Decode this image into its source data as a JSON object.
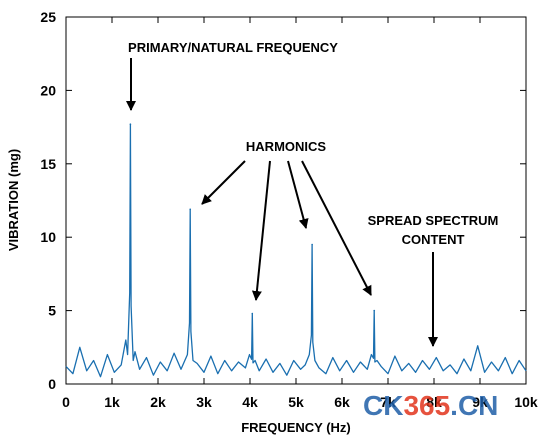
{
  "chart_data": {
    "type": "line",
    "xlabel": "FREQUENCY (Hz)",
    "ylabel": "VIBRATION (mg)",
    "xlim": [
      0,
      10000
    ],
    "ylim": [
      0,
      25
    ],
    "x_ticks": [
      0,
      1000,
      2000,
      3000,
      4000,
      5000,
      6000,
      7000,
      8000,
      9000,
      10000
    ],
    "x_tick_labels": [
      "0",
      "1k",
      "2k",
      "3k",
      "4k",
      "5k",
      "6k",
      "7k",
      "8k",
      "9k",
      "10k"
    ],
    "y_ticks": [
      0,
      5,
      10,
      15,
      20,
      25
    ],
    "y_tick_labels": [
      "0",
      "5",
      "10",
      "15",
      "20",
      "25"
    ],
    "grid": false,
    "color": "#1a6fb0",
    "peaks": [
      {
        "x": 1400,
        "y": 17.7
      },
      {
        "x": 2700,
        "y": 11.9
      },
      {
        "x": 4050,
        "y": 4.8
      },
      {
        "x": 5350,
        "y": 9.5
      },
      {
        "x": 6700,
        "y": 5.0
      }
    ],
    "noise_floor": [
      [
        0,
        1.2
      ],
      [
        150,
        0.7
      ],
      [
        300,
        2.5
      ],
      [
        450,
        0.9
      ],
      [
        600,
        1.6
      ],
      [
        750,
        0.5
      ],
      [
        900,
        2.0
      ],
      [
        1050,
        0.8
      ],
      [
        1200,
        1.3
      ],
      [
        1300,
        3.0
      ],
      [
        1500,
        2.2
      ],
      [
        1600,
        1.0
      ],
      [
        1750,
        1.8
      ],
      [
        1900,
        0.6
      ],
      [
        2050,
        1.5
      ],
      [
        2200,
        0.9
      ],
      [
        2350,
        2.1
      ],
      [
        2500,
        1.0
      ],
      [
        2850,
        1.4
      ],
      [
        3000,
        0.8
      ],
      [
        3150,
        1.9
      ],
      [
        3300,
        0.7
      ],
      [
        3450,
        1.6
      ],
      [
        3600,
        0.9
      ],
      [
        3750,
        1.5
      ],
      [
        3900,
        1.1
      ],
      [
        4200,
        0.9
      ],
      [
        4350,
        1.7
      ],
      [
        4500,
        0.8
      ],
      [
        4650,
        1.4
      ],
      [
        4800,
        0.6
      ],
      [
        4950,
        1.6
      ],
      [
        5100,
        1.0
      ],
      [
        5200,
        1.3
      ],
      [
        5500,
        1.1
      ],
      [
        5650,
        0.7
      ],
      [
        5800,
        1.8
      ],
      [
        5950,
        0.9
      ],
      [
        6100,
        1.6
      ],
      [
        6250,
        0.8
      ],
      [
        6400,
        1.5
      ],
      [
        6550,
        1.0
      ],
      [
        6850,
        1.2
      ],
      [
        7000,
        0.7
      ],
      [
        7150,
        1.9
      ],
      [
        7300,
        0.9
      ],
      [
        7450,
        1.4
      ],
      [
        7600,
        0.8
      ],
      [
        7750,
        1.6
      ],
      [
        7900,
        1.0
      ],
      [
        8050,
        1.8
      ],
      [
        8200,
        0.9
      ],
      [
        8350,
        1.3
      ],
      [
        8500,
        0.7
      ],
      [
        8650,
        1.7
      ],
      [
        8800,
        0.9
      ],
      [
        8950,
        2.6
      ],
      [
        9100,
        0.8
      ],
      [
        9250,
        1.5
      ],
      [
        9400,
        0.9
      ],
      [
        9550,
        1.8
      ],
      [
        9700,
        0.7
      ],
      [
        9850,
        1.6
      ],
      [
        10000,
        0.9
      ]
    ],
    "annotations": [
      {
        "text": "PRIMARY/NATURAL FREQUENCY"
      },
      {
        "text": "HARMONICS"
      },
      {
        "text": "SPREAD SPECTRUM"
      },
      {
        "text": "CONTENT"
      }
    ]
  },
  "watermark": {
    "text": "CK365.CN",
    "color_ck": "#1f5fa8",
    "color_365": "#e2341d",
    "color_cn": "#1f5fa8"
  }
}
